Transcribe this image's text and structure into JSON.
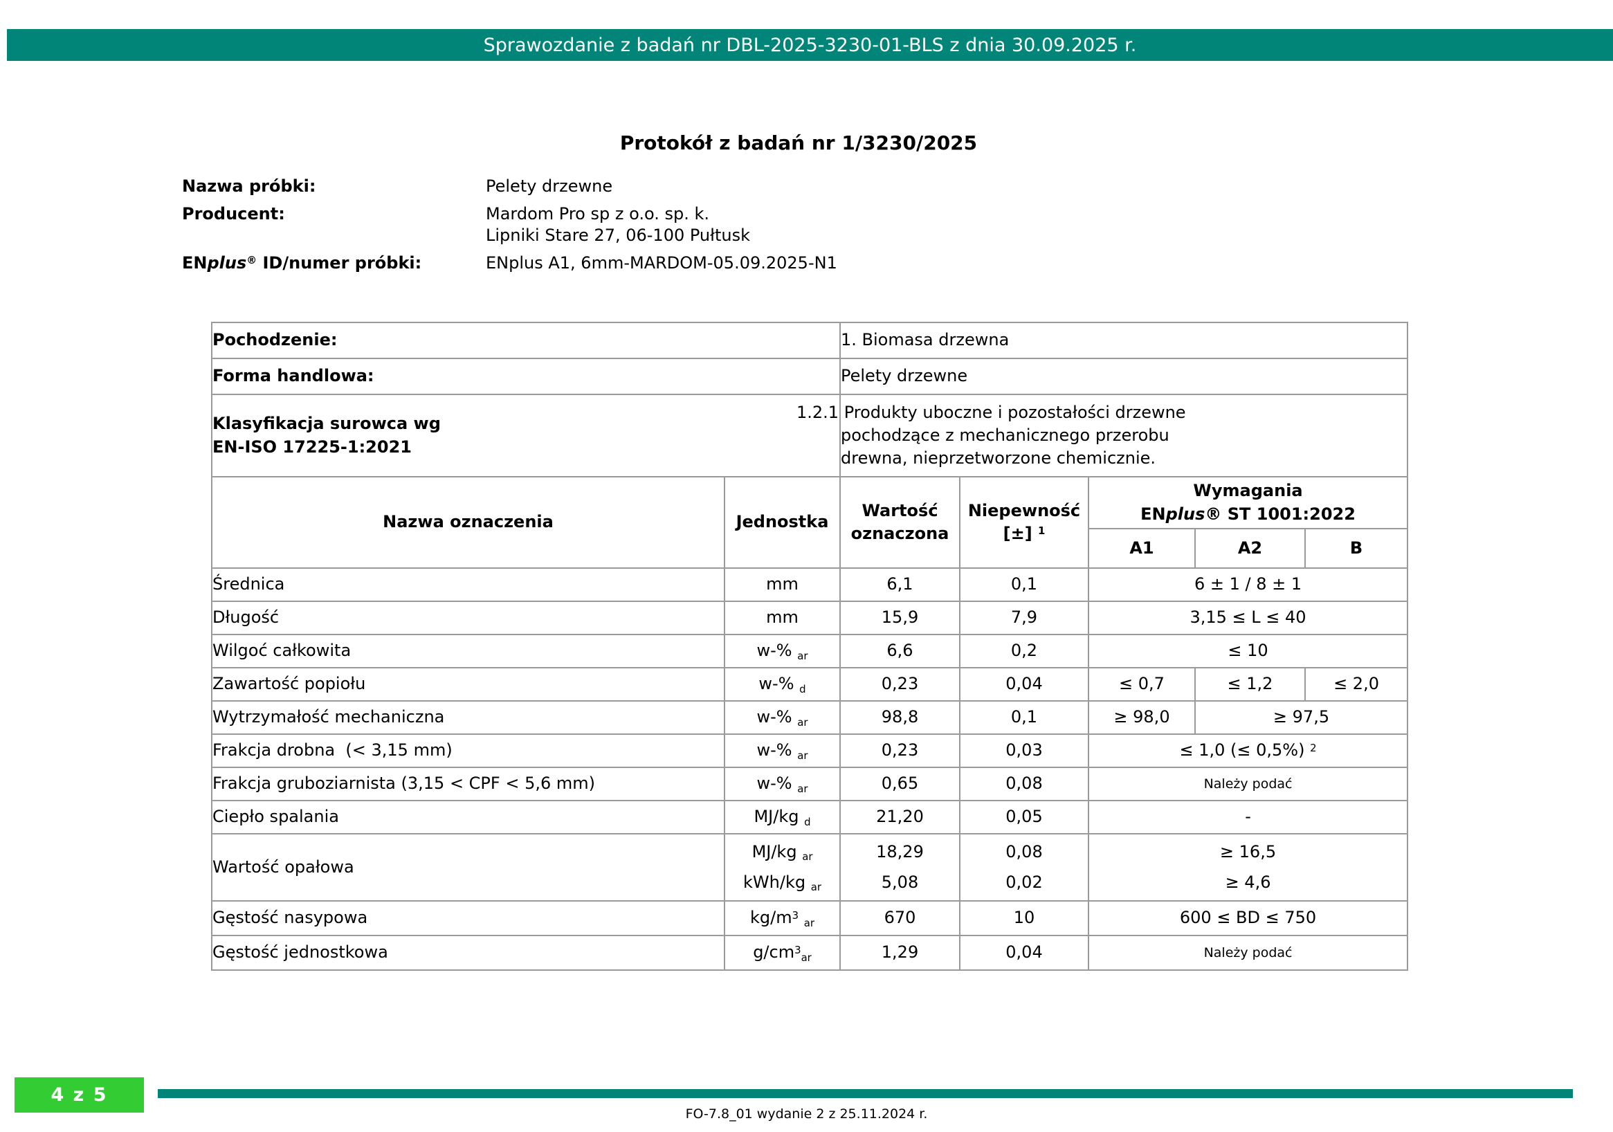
{
  "colors": {
    "teal": "#008578",
    "green": "#33CC33"
  },
  "header_bar": {
    "text": "Sprawozdanie z badań nr DBL-2025-3230-01-BLS z dnia 30.09.2025 r."
  },
  "title": "Protokół z badań nr 1/3230/2025",
  "info": [
    {
      "label": "Nazwa próbki:",
      "value": "Pelety drzewne"
    },
    {
      "label": "Producent:",
      "value": "Mardom Pro sp z o.o. sp. k.\nLipniki Stare 27, 06-100 Pułtusk"
    },
    {
      "label": "EN*plus*^{®} ID/numer próbki:",
      "value": "ENplus A1, 6mm-MARDOM-05.09.2025-N1"
    }
  ],
  "table": {
    "meta_rows": [
      {
        "label": "Pochodzenie:",
        "value": "1. Biomasa drzewna"
      },
      {
        "label": "Forma handlowa:",
        "value": "Pelety drzewne"
      },
      {
        "label": "Klasyfikacja surowca wg\nEN-ISO 17225-1:2021",
        "value": "1.2.1 Produkty uboczne i pozostałości drzewne\npochodzące z mechanicznego przerobu\ndrewna, nieprzetworzone chemicznie."
      }
    ],
    "header": {
      "name": "Nazwa oznaczenia",
      "unit": "Jednostka",
      "value": "Wartość\noznaczona",
      "uncertainty": "Niepewność\n[±] ^{1}",
      "requirements": "Wymagania\nEN*plus*® ST 1001:2022",
      "class_a1": "A1",
      "class_a2": "A2",
      "class_b": "B"
    },
    "rows": [
      {
        "name": "Średnica",
        "unit": "mm",
        "value": "6,1",
        "uncertainty": "0,1",
        "req": {
          "type": "span",
          "values": [
            "6 ± 1 / 8 ± 1"
          ]
        }
      },
      {
        "name": "Długość",
        "unit": "mm",
        "value": "15,9",
        "uncertainty": "7,9",
        "req": {
          "type": "span",
          "values": [
            "3,15 ≤ L ≤ 40"
          ]
        }
      },
      {
        "name": "Wilgoć całkowita",
        "unit": "w-% _{ar}",
        "value": "6,6",
        "uncertainty": "0,2",
        "req": {
          "type": "span",
          "values": [
            "≤ 10"
          ]
        }
      },
      {
        "name": "Zawartość popiołu",
        "unit": "w-% _{d}",
        "value": "0,23",
        "uncertainty": "0,04",
        "req": {
          "type": "three",
          "values": [
            "≤ 0,7",
            "≤ 1,2",
            "≤ 2,0"
          ]
        }
      },
      {
        "name": "Wytrzymałość mechaniczna",
        "unit": "w-% _{ar}",
        "value": "98,8",
        "uncertainty": "0,1",
        "req": {
          "type": "split",
          "values": [
            "≥ 98,0",
            "≥ 97,5"
          ]
        }
      },
      {
        "name": "Frakcja drobna  (< 3,15 mm)",
        "unit": "w-% _{ar}",
        "value": "0,23",
        "uncertainty": "0,03",
        "req": {
          "type": "span",
          "values": [
            "≤ 1,0 (≤ 0,5%) ^{2}"
          ]
        }
      },
      {
        "name": "Frakcja gruboziarnista (3,15 < CPF < 5,6 mm)",
        "unit": "w-% _{ar}",
        "value": "0,65",
        "uncertainty": "0,08",
        "req": {
          "type": "span",
          "values": [
            "Należy podać"
          ],
          "small": true
        }
      },
      {
        "name": "Ciepło spalania",
        "unit": "MJ/kg _{d}",
        "value": "21,20",
        "uncertainty": "0,05",
        "req": {
          "type": "span",
          "values": [
            "-"
          ]
        }
      },
      {
        "name": "Wartość opałowa",
        "unit": "MJ/kg _{ar}\nkWh/kg _{ar}",
        "value": "18,29\n5,08",
        "uncertainty": "0,08\n0,02",
        "req": {
          "type": "span",
          "values": [
            "≥ 16,5\n≥ 4,6"
          ]
        }
      },
      {
        "name": "Gęstość nasypowa",
        "unit": "kg/m^{3} _{ar}",
        "value": "670",
        "uncertainty": "10",
        "req": {
          "type": "span",
          "values": [
            "600 ≤ BD ≤ 750"
          ]
        }
      },
      {
        "name": "Gęstość jednostkowa",
        "unit": "g/cm^{3}_{ar}",
        "value": "1,29",
        "uncertainty": "0,04",
        "req": {
          "type": "span",
          "values": [
            "Należy podać"
          ],
          "small": true
        }
      }
    ]
  },
  "footer": {
    "page_indicator": "4 z 5",
    "doc_ref": "FO-7.8_01 wydanie 2 z 25.11.2024 r."
  }
}
